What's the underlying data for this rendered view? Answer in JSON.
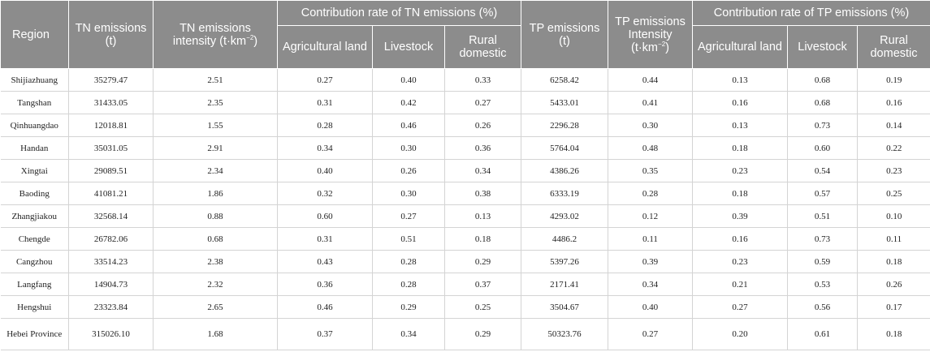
{
  "header": {
    "region": "Region",
    "tn_emissions": "TN emissions (t)",
    "tn_intensity_main": "TN emissions intensity (t·km",
    "tn_intensity_sup": "−2",
    "tn_intensity_end": ")",
    "tn_contribution": "Contribution rate of TN emissions (%)",
    "tp_emissions": "TP emissions (t)",
    "tp_intensity_main": "TP emissions Intensity (t·km",
    "tp_intensity_sup": "−2",
    "tp_intensity_end": ")",
    "tp_contribution": "Contribution rate of TP emissions (%)",
    "sub": {
      "agricultural": "Agricultural land",
      "livestock": "Livestock",
      "rural": "Rural domestic"
    }
  },
  "rows": [
    {
      "region": "Shijiazhuang",
      "tn": "35279.47",
      "tn_int": "2.51",
      "tn_ag": "0.27",
      "tn_ls": "0.40",
      "tn_rd": "0.33",
      "tp": "6258.42",
      "tp_int": "0.44",
      "tp_ag": "0.13",
      "tp_ls": "0.68",
      "tp_rd": "0.19"
    },
    {
      "region": "Tangshan",
      "tn": "31433.05",
      "tn_int": "2.35",
      "tn_ag": "0.31",
      "tn_ls": "0.42",
      "tn_rd": "0.27",
      "tp": "5433.01",
      "tp_int": "0.41",
      "tp_ag": "0.16",
      "tp_ls": "0.68",
      "tp_rd": "0.16"
    },
    {
      "region": "Qinhuangdao",
      "tn": "12018.81",
      "tn_int": "1.55",
      "tn_ag": "0.28",
      "tn_ls": "0.46",
      "tn_rd": "0.26",
      "tp": "2296.28",
      "tp_int": "0.30",
      "tp_ag": "0.13",
      "tp_ls": "0.73",
      "tp_rd": "0.14"
    },
    {
      "region": "Handan",
      "tn": "35031.05",
      "tn_int": "2.91",
      "tn_ag": "0.34",
      "tn_ls": "0.30",
      "tn_rd": "0.36",
      "tp": "5764.04",
      "tp_int": "0.48",
      "tp_ag": "0.18",
      "tp_ls": "0.60",
      "tp_rd": "0.22"
    },
    {
      "region": "Xingtai",
      "tn": "29089.51",
      "tn_int": "2.34",
      "tn_ag": "0.40",
      "tn_ls": "0.26",
      "tn_rd": "0.34",
      "tp": "4386.26",
      "tp_int": "0.35",
      "tp_ag": "0.23",
      "tp_ls": "0.54",
      "tp_rd": "0.23"
    },
    {
      "region": "Baoding",
      "tn": "41081.21",
      "tn_int": "1.86",
      "tn_ag": "0.32",
      "tn_ls": "0.30",
      "tn_rd": "0.38",
      "tp": "6333.19",
      "tp_int": "0.28",
      "tp_ag": "0.18",
      "tp_ls": "0.57",
      "tp_rd": "0.25"
    },
    {
      "region": "Zhangjiakou",
      "tn": "32568.14",
      "tn_int": "0.88",
      "tn_ag": "0.60",
      "tn_ls": "0.27",
      "tn_rd": "0.13",
      "tp": "4293.02",
      "tp_int": "0.12",
      "tp_ag": "0.39",
      "tp_ls": "0.51",
      "tp_rd": "0.10"
    },
    {
      "region": "Chengde",
      "tn": "26782.06",
      "tn_int": "0.68",
      "tn_ag": "0.31",
      "tn_ls": "0.51",
      "tn_rd": "0.18",
      "tp": "4486.2",
      "tp_int": "0.11",
      "tp_ag": "0.16",
      "tp_ls": "0.73",
      "tp_rd": "0.11"
    },
    {
      "region": "Cangzhou",
      "tn": "33514.23",
      "tn_int": "2.38",
      "tn_ag": "0.43",
      "tn_ls": "0.28",
      "tn_rd": "0.29",
      "tp": "5397.26",
      "tp_int": "0.39",
      "tp_ag": "0.23",
      "tp_ls": "0.59",
      "tp_rd": "0.18"
    },
    {
      "region": "Langfang",
      "tn": "14904.73",
      "tn_int": "2.32",
      "tn_ag": "0.36",
      "tn_ls": "0.28",
      "tn_rd": "0.37",
      "tp": "2171.41",
      "tp_int": "0.34",
      "tp_ag": "0.21",
      "tp_ls": "0.53",
      "tp_rd": "0.26"
    },
    {
      "region": "Hengshui",
      "tn": "23323.84",
      "tn_int": "2.65",
      "tn_ag": "0.46",
      "tn_ls": "0.29",
      "tn_rd": "0.25",
      "tp": "3504.67",
      "tp_int": "0.40",
      "tp_ag": "0.27",
      "tp_ls": "0.56",
      "tp_rd": "0.17"
    },
    {
      "region": "Hebei Province",
      "tn": "315026.10",
      "tn_int": "1.68",
      "tn_ag": "0.37",
      "tn_ls": "0.34",
      "tn_rd": "0.29",
      "tp": "50323.76",
      "tp_int": "0.27",
      "tp_ag": "0.20",
      "tp_ls": "0.61",
      "tp_rd": "0.18"
    }
  ]
}
